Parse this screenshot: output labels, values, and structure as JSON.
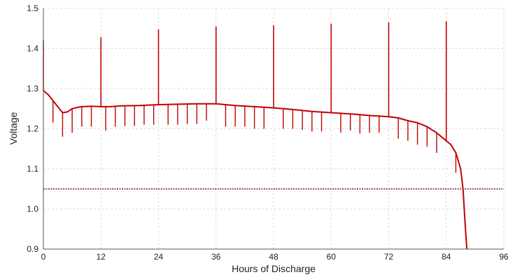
{
  "chart_data": {
    "type": "line",
    "title": "",
    "xlabel": "Hours of Discharge",
    "ylabel": "Voltage",
    "xlim": [
      0,
      96
    ],
    "ylim": [
      0.9,
      1.5
    ],
    "x_ticks": [
      0,
      12,
      24,
      36,
      48,
      60,
      72,
      84,
      96
    ],
    "y_ticks": [
      0.9,
      1.0,
      1.1,
      1.2,
      1.3,
      1.4,
      1.5
    ],
    "x_tick_labels": [
      "0",
      "12",
      "24",
      "36",
      "48",
      "60",
      "72",
      "84",
      "96"
    ],
    "y_tick_labels": [
      "0.9",
      "1.0",
      "1.1",
      "1.2",
      "1.3",
      "1.4",
      "1.5"
    ],
    "grid": true,
    "line_color": "#c00000",
    "cutoff_color": "#7a1a2e",
    "series": [
      {
        "x": [
          0,
          1,
          2,
          3,
          4,
          5,
          6,
          7,
          8,
          10,
          12,
          14,
          16,
          20,
          24,
          28,
          32,
          36,
          40,
          44,
          48,
          52,
          56,
          60,
          64,
          68,
          72,
          74,
          76,
          78,
          80,
          82,
          84,
          85,
          86,
          87,
          87.5,
          88,
          88.3
        ],
        "y": [
          1.295,
          1.285,
          1.27,
          1.255,
          1.24,
          1.242,
          1.25,
          1.253,
          1.255,
          1.256,
          1.255,
          1.255,
          1.257,
          1.258,
          1.26,
          1.261,
          1.262,
          1.262,
          1.258,
          1.255,
          1.252,
          1.248,
          1.243,
          1.24,
          1.237,
          1.233,
          1.23,
          1.227,
          1.22,
          1.215,
          1.205,
          1.19,
          1.17,
          1.16,
          1.14,
          1.1,
          1.05,
          0.95,
          0.9
        ]
      }
    ],
    "spikes_up": [
      {
        "x": 0,
        "y": 1.42
      },
      {
        "x": 12,
        "y": 1.428
      },
      {
        "x": 24,
        "y": 1.448
      },
      {
        "x": 36,
        "y": 1.455
      },
      {
        "x": 48,
        "y": 1.458
      },
      {
        "x": 60,
        "y": 1.462
      },
      {
        "x": 72,
        "y": 1.465
      },
      {
        "x": 84,
        "y": 1.468
      }
    ],
    "spikes_down": [
      {
        "x": 2,
        "y": 1.215
      },
      {
        "x": 4,
        "y": 1.18
      },
      {
        "x": 6,
        "y": 1.19
      },
      {
        "x": 8,
        "y": 1.205
      },
      {
        "x": 10,
        "y": 1.205
      },
      {
        "x": 13,
        "y": 1.195
      },
      {
        "x": 15,
        "y": 1.205
      },
      {
        "x": 17,
        "y": 1.207
      },
      {
        "x": 19,
        "y": 1.207
      },
      {
        "x": 21,
        "y": 1.21
      },
      {
        "x": 23,
        "y": 1.21
      },
      {
        "x": 26,
        "y": 1.21
      },
      {
        "x": 28,
        "y": 1.21
      },
      {
        "x": 30,
        "y": 1.212
      },
      {
        "x": 32,
        "y": 1.212
      },
      {
        "x": 34,
        "y": 1.22
      },
      {
        "x": 38,
        "y": 1.205
      },
      {
        "x": 40,
        "y": 1.205
      },
      {
        "x": 42,
        "y": 1.205
      },
      {
        "x": 44,
        "y": 1.2
      },
      {
        "x": 46,
        "y": 1.2
      },
      {
        "x": 50,
        "y": 1.2
      },
      {
        "x": 52,
        "y": 1.2
      },
      {
        "x": 54,
        "y": 1.197
      },
      {
        "x": 56,
        "y": 1.193
      },
      {
        "x": 58,
        "y": 1.193
      },
      {
        "x": 62,
        "y": 1.19
      },
      {
        "x": 64,
        "y": 1.195
      },
      {
        "x": 66,
        "y": 1.188
      },
      {
        "x": 68,
        "y": 1.19
      },
      {
        "x": 70,
        "y": 1.19
      },
      {
        "x": 74,
        "y": 1.175
      },
      {
        "x": 76,
        "y": 1.17
      },
      {
        "x": 78,
        "y": 1.16
      },
      {
        "x": 80,
        "y": 1.155
      },
      {
        "x": 82,
        "y": 1.14
      },
      {
        "x": 86,
        "y": 1.09
      }
    ],
    "cutoff_line": {
      "y": 1.05
    }
  }
}
